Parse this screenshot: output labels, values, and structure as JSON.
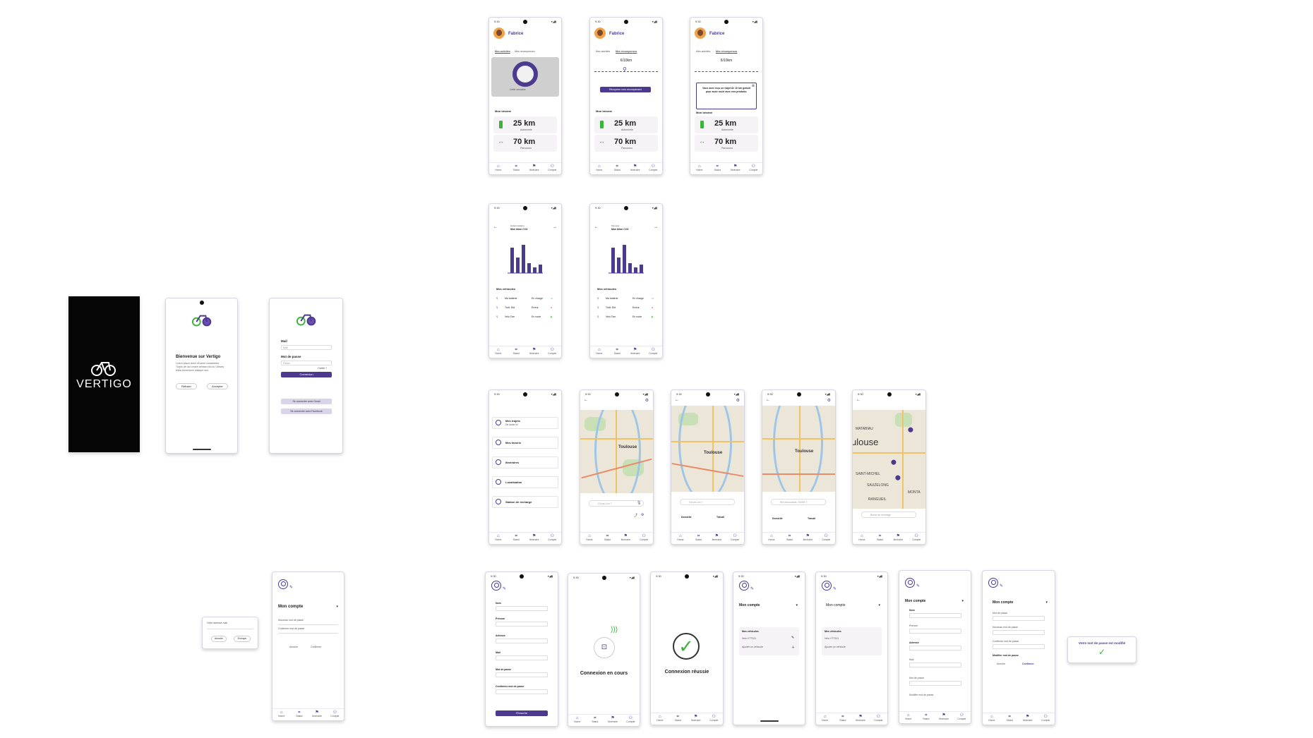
{
  "status": {
    "time": "9:30",
    "icons": "▾◢▮"
  },
  "nav": {
    "home": "Home",
    "statut": "Statut",
    "itineraire": "Itinéraire",
    "compte": "Compte"
  },
  "splash": {
    "brand": "VERTIGO"
  },
  "welcome": {
    "title": "Bienvenue sur Vertigo",
    "body": "Lorem ipsum dolor sit amet consectetur. Turpis vel dui ornare aenean nisl at. Ultrices tellus fermentum tristique sed.",
    "refuse": "Refuser",
    "accept": "Accepter"
  },
  "login": {
    "mail_label": "Mail",
    "mail_ph": "Mail",
    "password_label": "Mot de passe",
    "password_ph": "Passe",
    "forgot": "Oublié ?",
    "connect": "Connexion",
    "gmail": "Se connecter avec Gmail",
    "facebook": "Se connecter avec Facebook"
  },
  "reset_popup": {
    "label": "Votre adresse mail",
    "cancel": "Annuler",
    "send": "Envoyer"
  },
  "account_small": {
    "title": "Mon compte",
    "new_pw": "Nouveau mot de passe",
    "confirm_pw": "Confirmer mot de passe",
    "cancel": "Annuler",
    "confirm": "Confirmer"
  },
  "home": {
    "name": "Fabrice",
    "tab1": "Mes activités",
    "tab2": "Mes récompenses",
    "week": "Cette semaine",
    "progress": "6/10km",
    "claim": "Récupérer mes récompenses",
    "gift": "Vous avez reçu un trajet de 10 km gratuit pour avoir roulé avec nos produits.",
    "bike_section": "Mon bécane",
    "autonomy_value": "25 km",
    "autonomy_label": "Autonomie",
    "distance_value": "70 km",
    "distance_label": "Parcourus"
  },
  "stats": {
    "screens": [
      {
        "caption": "Hebdomadaire",
        "title": "Mon bilan CO2"
      },
      {
        "caption": "Mensuel",
        "title": "Mon bilan CO2"
      }
    ],
    "bars": [
      0.9,
      0.55,
      1.0,
      0.35,
      0.2,
      0.3
    ],
    "vehicles_title": "Mes véhicules",
    "vehicles": [
      {
        "name": "Ma batterie",
        "status": "En charge"
      },
      {
        "name": "Trott. Ebt",
        "status": "Erreur"
      },
      {
        "name": "Velo Tom",
        "status": "En route"
      }
    ]
  },
  "menu": {
    "items": [
      {
        "label": "Mes trajets",
        "sub": "De toute ici"
      },
      {
        "label": "Mes favoris",
        "sub": ""
      },
      {
        "label": "Itinéraires",
        "sub": ""
      },
      {
        "label": "Localisation",
        "sub": ""
      },
      {
        "label": "Station de recharge",
        "sub": ""
      }
    ]
  },
  "maps": {
    "city": "Toulouse",
    "city_zoom": "ulouse",
    "where": "Où va-t-on ?",
    "address": "Rd Leucourses, 31000 T",
    "home": "Domicile",
    "work": "Travail",
    "charge": "Borne de recharge",
    "labels": [
      "MATABIAU",
      "SAINT-MICHEL",
      "SAUZELONG",
      "RANGUEIL",
      "MONTA"
    ]
  },
  "signup": {
    "nom": "Nom",
    "prenom": "Prénom",
    "adresse": "Adresse",
    "mail": "Mail",
    "mdp": "Mot de passe",
    "confirm_mdp": "Confirmez mot de passe",
    "submit": "S'inscrire"
  },
  "pairing": {
    "connecting": "Connexion en cours",
    "success": "Connexion réussie"
  },
  "account": {
    "title": "Mon compte",
    "vehicles": "Mes véhicules",
    "vehicle_item": "Velo VTT321",
    "add": "Ajouter un véhicule",
    "modify_pw": "Modifier mot de passe",
    "pw": "Mot de passe",
    "new_pw": "Nouveau mot de passe",
    "confirm_pw": "Confirmer mot de passe",
    "cancel": "Annuler",
    "confirm": "Confirmer",
    "nom": "Nom",
    "prenom": "Prénom",
    "adresse": "Adresse",
    "mail": "Mail"
  },
  "toast": {
    "text": "Votre mot de passe est modifié"
  },
  "colors": {
    "accent": "#4b3a8e",
    "green": "#3bb43b",
    "bg": "#f6f3f6"
  }
}
